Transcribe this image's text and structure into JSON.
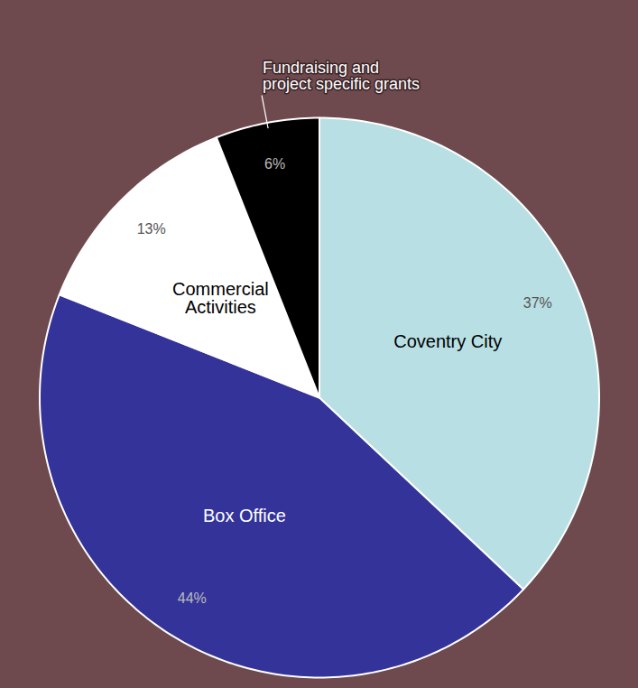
{
  "chart_data": {
    "type": "pie",
    "categories": [
      "Coventry City",
      "Box Office",
      "Commercial Activities",
      "Fundraising and project specific grants"
    ],
    "values": [
      37,
      44,
      13,
      6
    ],
    "value_labels": [
      "37%",
      "44%",
      "13%",
      "6%"
    ],
    "colors": [
      "#b8dfe3",
      "#33339a",
      "#ffffff",
      "#000000"
    ],
    "data_labels": true
  }
}
